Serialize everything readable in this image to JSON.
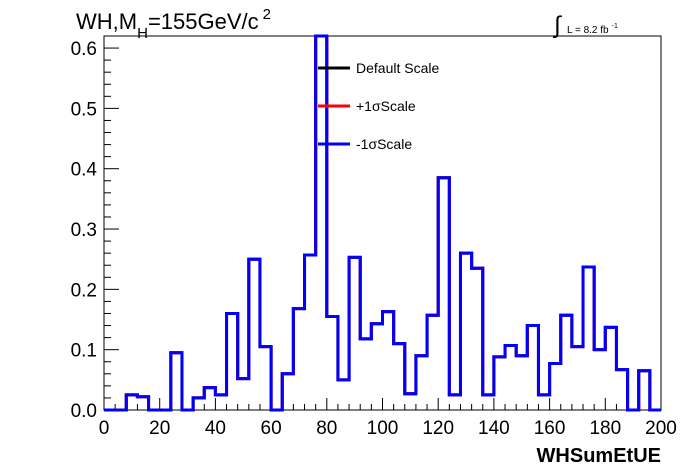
{
  "chart_data": {
    "type": "histogram",
    "title_main": "WH,M",
    "title_sub": "H",
    "title_rest": "=155GeV/c",
    "title_sup": "2",
    "lumi_label": "L = 8.2 fb",
    "lumi_sup": "-1",
    "xlabel": "WHSumEtUE",
    "ylabel": "",
    "xlim": [
      0,
      200
    ],
    "ylim": [
      0,
      0.62
    ],
    "bin_width": 4,
    "x_ticks": [
      0,
      20,
      40,
      60,
      80,
      100,
      120,
      140,
      160,
      180,
      200
    ],
    "x_tick_labels": [
      "0",
      "20",
      "40",
      "60",
      "80",
      "100",
      "120",
      "140",
      "160",
      "180",
      "200"
    ],
    "y_ticks": [
      0.0,
      0.1,
      0.2,
      0.3,
      0.4,
      0.5,
      0.6
    ],
    "y_tick_labels": [
      "0.0",
      "0.1",
      "0.2",
      "0.3",
      "0.4",
      "0.5",
      "0.6"
    ],
    "legend_position": "top-center",
    "series": [
      {
        "name": "Default Scale",
        "color": "#000000",
        "values": [
          0,
          0,
          0.025,
          0.022,
          0,
          0,
          0.095,
          0,
          0.02,
          0.037,
          0.025,
          0.16,
          0.052,
          0.25,
          0.105,
          0,
          0.06,
          0.168,
          0.257,
          0.62,
          0.155,
          0.05,
          0.253,
          0.118,
          0.143,
          0.163,
          0.11,
          0.027,
          0.09,
          0.157,
          0.385,
          0.025,
          0.26,
          0.235,
          0.025,
          0.088,
          0.107,
          0.09,
          0.14,
          0.025,
          0.077,
          0.157,
          0.105,
          0.237,
          0.1,
          0.137,
          0.067,
          0,
          0.065,
          0
        ]
      },
      {
        "name": "+1σScale",
        "color": "#ff0000",
        "values": [
          0,
          0,
          0.025,
          0.022,
          0,
          0,
          0.095,
          0,
          0.02,
          0.037,
          0.025,
          0.16,
          0.052,
          0.25,
          0.105,
          0,
          0.06,
          0.168,
          0.257,
          0.62,
          0.155,
          0.05,
          0.253,
          0.118,
          0.143,
          0.163,
          0.11,
          0.027,
          0.09,
          0.157,
          0.385,
          0.025,
          0.26,
          0.235,
          0.025,
          0.088,
          0.107,
          0.09,
          0.14,
          0.025,
          0.077,
          0.157,
          0.105,
          0.237,
          0.1,
          0.137,
          0.067,
          0,
          0.065,
          0
        ]
      },
      {
        "name": "-1σScale",
        "color": "#0000ff",
        "values": [
          0,
          0,
          0.025,
          0.022,
          0,
          0,
          0.095,
          0,
          0.02,
          0.037,
          0.025,
          0.16,
          0.052,
          0.25,
          0.105,
          0,
          0.06,
          0.168,
          0.257,
          0.62,
          0.155,
          0.05,
          0.253,
          0.118,
          0.143,
          0.163,
          0.11,
          0.027,
          0.09,
          0.157,
          0.385,
          0.025,
          0.26,
          0.235,
          0.025,
          0.088,
          0.107,
          0.09,
          0.14,
          0.025,
          0.077,
          0.157,
          0.105,
          0.237,
          0.1,
          0.137,
          0.067,
          0,
          0.065,
          0
        ]
      }
    ]
  }
}
